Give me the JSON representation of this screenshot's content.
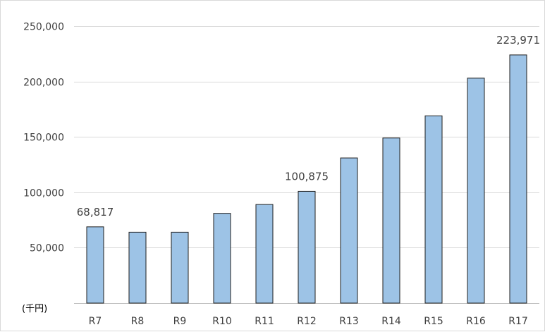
{
  "chart_data": {
    "type": "bar",
    "categories": [
      "R7",
      "R8",
      "R9",
      "R10",
      "R11",
      "R12",
      "R13",
      "R14",
      "R15",
      "R16",
      "R17"
    ],
    "values": [
      68817,
      64000,
      64000,
      81000,
      89000,
      100875,
      131000,
      149000,
      169000,
      203000,
      223971
    ],
    "data_labels": {
      "R7": "68,817",
      "R12": "100,875",
      "R17": "223,971"
    },
    "unit_label": "(千円)",
    "y_ticks": [
      0,
      50000,
      100000,
      150000,
      200000,
      250000
    ],
    "y_tick_labels": [
      "",
      "50,000",
      "100,000",
      "150,000",
      "200,000",
      "250,000"
    ],
    "ylim": [
      0,
      250000
    ],
    "grid": true,
    "bar_color": "#9dc3e6",
    "bar_edge_color": "#1f1f1f",
    "legend": "none"
  }
}
